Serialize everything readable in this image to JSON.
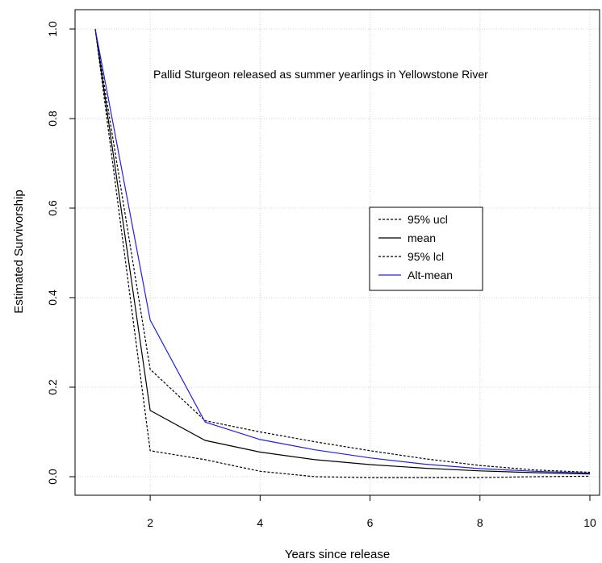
{
  "chart_data": {
    "type": "line",
    "title": "",
    "annotation": "Pallid Sturgeon released as summer yearlings in Yellowstone River",
    "xlabel": "Years since release",
    "ylabel": "Estimated Survivorship",
    "xlim": [
      1,
      10
    ],
    "ylim": [
      0,
      1
    ],
    "xticks": [
      2,
      4,
      6,
      8,
      10
    ],
    "yticks": [
      0.0,
      0.2,
      0.4,
      0.6,
      0.8,
      1.0
    ],
    "ytick_labels": [
      "0.0",
      "0.2",
      "0.4",
      "0.6",
      "0.8",
      "1.0"
    ],
    "xtick_labels": [
      "2",
      "4",
      "6",
      "8",
      "10"
    ],
    "grid": true,
    "legend_position": "center-right",
    "x": [
      1,
      2,
      3,
      4,
      5,
      6,
      7,
      8,
      9,
      10
    ],
    "series": [
      {
        "name": "95% ucl",
        "color": "#000000",
        "dash": "dotted",
        "values": [
          1.0,
          0.24,
          0.125,
          0.1,
          0.078,
          0.058,
          0.04,
          0.025,
          0.015,
          0.01
        ]
      },
      {
        "name": "mean",
        "color": "#000000",
        "dash": "solid",
        "values": [
          1.0,
          0.148,
          0.081,
          0.055,
          0.038,
          0.027,
          0.019,
          0.013,
          0.009,
          0.006
        ]
      },
      {
        "name": "95% lcl",
        "color": "#000000",
        "dash": "dotted",
        "values": [
          1.0,
          0.058,
          0.038,
          0.012,
          0.0,
          -0.002,
          -0.002,
          -0.002,
          0.0,
          0.001
        ]
      },
      {
        "name": "Alt-mean",
        "color": "#2020e0",
        "dash": "solid",
        "values": [
          1.0,
          0.35,
          0.122,
          0.083,
          0.06,
          0.042,
          0.028,
          0.018,
          0.012,
          0.008
        ]
      }
    ]
  }
}
